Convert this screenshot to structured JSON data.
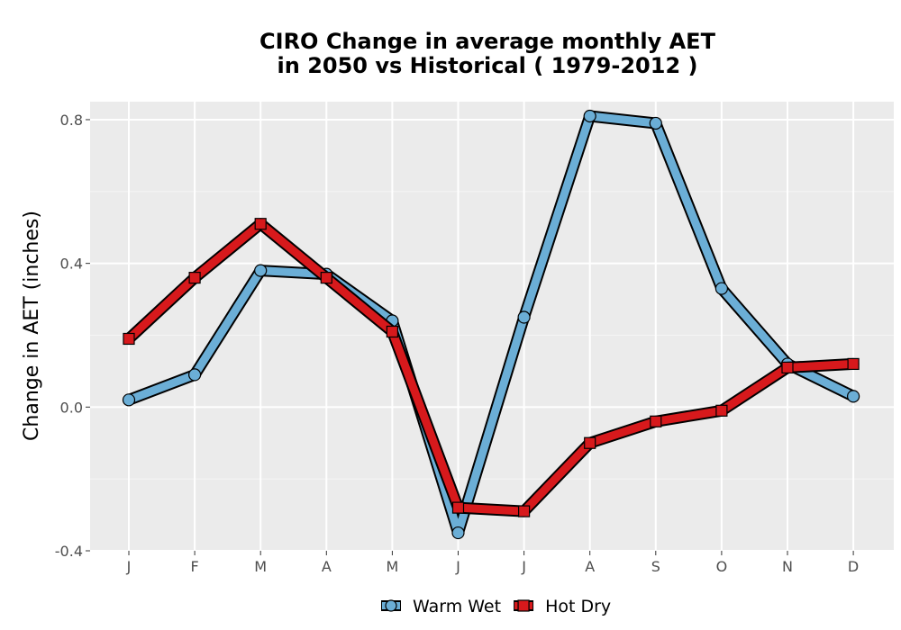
{
  "chart_data": {
    "type": "line",
    "title_line1": "CIRO  Change in average monthly AET",
    "title_line2": "in 2050 vs Historical ( 1979-2012 )",
    "xlabel": "",
    "ylabel": "Change in AET (inches)",
    "categories": [
      "J",
      "F",
      "M",
      "A",
      "M",
      "J",
      "J",
      "A",
      "S",
      "O",
      "N",
      "D"
    ],
    "ylim": [
      -0.4,
      0.85
    ],
    "y_ticks": [
      -0.4,
      0.0,
      0.4,
      0.8
    ],
    "y_tick_labels": [
      "-0.4",
      "0.0",
      "0.4",
      "0.8"
    ],
    "grid": true,
    "legend_position": "bottom",
    "series": [
      {
        "name": "Warm Wet",
        "color": "#6baed6",
        "marker": "circle",
        "values": [
          0.02,
          0.09,
          0.38,
          0.37,
          0.24,
          -0.35,
          0.25,
          0.81,
          0.79,
          0.33,
          0.12,
          0.03
        ]
      },
      {
        "name": "Hot Dry",
        "color": "#d7191c",
        "marker": "square",
        "values": [
          0.19,
          0.36,
          0.51,
          0.36,
          0.21,
          -0.28,
          -0.29,
          -0.1,
          -0.04,
          -0.01,
          0.11,
          0.12
        ]
      }
    ]
  }
}
